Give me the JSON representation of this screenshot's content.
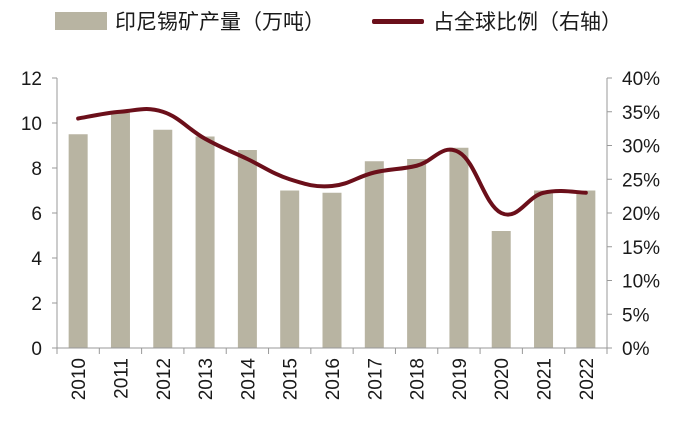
{
  "legend": {
    "bar_label": "印尼锡矿产量（万吨）",
    "line_label": "占全球比例（右轴）"
  },
  "colors": {
    "bar": "#b8b4a2",
    "line": "#6b0f1a",
    "axis": "#999999"
  },
  "chart_data": {
    "type": "bar",
    "categories": [
      "2010",
      "2011",
      "2012",
      "2013",
      "2014",
      "2015",
      "2016",
      "2017",
      "2018",
      "2019",
      "2020",
      "2021",
      "2022"
    ],
    "series": [
      {
        "name": "印尼锡矿产量（万吨）",
        "type": "bar",
        "axis": "left",
        "values": [
          9.5,
          10.5,
          9.7,
          9.4,
          8.8,
          7.0,
          6.9,
          8.3,
          8.4,
          8.9,
          5.2,
          7.0,
          7.0
        ]
      },
      {
        "name": "占全球比例（右轴）",
        "type": "line",
        "axis": "right",
        "values": [
          34,
          35,
          35,
          31,
          28,
          25,
          24,
          26,
          27,
          29,
          20,
          23,
          23
        ]
      }
    ],
    "left_axis": {
      "ylim": [
        0,
        12
      ],
      "ticks": [
        "0",
        "2",
        "4",
        "6",
        "8",
        "10",
        "12"
      ]
    },
    "right_axis": {
      "ylim": [
        0,
        40
      ],
      "ticks": [
        "0%",
        "5%",
        "10%",
        "15%",
        "20%",
        "25%",
        "30%",
        "35%",
        "40%"
      ]
    },
    "legend_position": "top",
    "grid": false
  }
}
